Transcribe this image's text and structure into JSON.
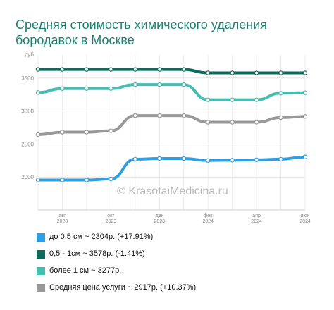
{
  "title": "Средняя стоимость химического удаления бородавок в Москве",
  "chart_data": {
    "type": "line",
    "ylabel": "руб",
    "ylim": [
      1500,
      3850
    ],
    "yticks": [
      2000,
      2500,
      3000,
      3500
    ],
    "x_index": [
      0,
      1,
      2,
      3,
      4,
      5,
      6,
      7,
      8,
      9,
      10,
      11
    ],
    "xticks": [
      {
        "i": 1,
        "line1": "авг",
        "line2": "2023"
      },
      {
        "i": 3,
        "line1": "окт",
        "line2": "2023"
      },
      {
        "i": 5,
        "line1": "дек",
        "line2": "2023"
      },
      {
        "i": 7,
        "line1": "фев",
        "line2": "2024"
      },
      {
        "i": 9,
        "line1": "апр",
        "line2": "2024"
      },
      {
        "i": 11,
        "line1": "июн",
        "line2": "2024"
      }
    ],
    "series": [
      {
        "name": "до 0,5 см ~ 2304р. (+17.91%)",
        "color": "#2e9fe0",
        "values": [
          1954,
          1954,
          1954,
          1970,
          2270,
          2280,
          2280,
          2250,
          2255,
          2260,
          2270,
          2304
        ]
      },
      {
        "name": "0,5 - 1см ~ 3578р. (-1.41%)",
        "color": "#0d6b5c",
        "values": [
          3630,
          3630,
          3630,
          3630,
          3630,
          3630,
          3630,
          3578,
          3578,
          3578,
          3578,
          3578
        ]
      },
      {
        "name": "более 1 см ~ 3277р.",
        "color": "#45bdb0",
        "values": [
          3280,
          3340,
          3340,
          3340,
          3400,
          3400,
          3400,
          3170,
          3170,
          3170,
          3270,
          3277
        ]
      },
      {
        "name": "Средняя цена услуги ~ 2917р. (+10.37%)",
        "color": "#999999",
        "values": [
          2643,
          2680,
          2680,
          2700,
          2930,
          2930,
          2930,
          2830,
          2830,
          2830,
          2900,
          2917
        ]
      }
    ],
    "watermark": "© KrasotaiMedicina.ru"
  }
}
